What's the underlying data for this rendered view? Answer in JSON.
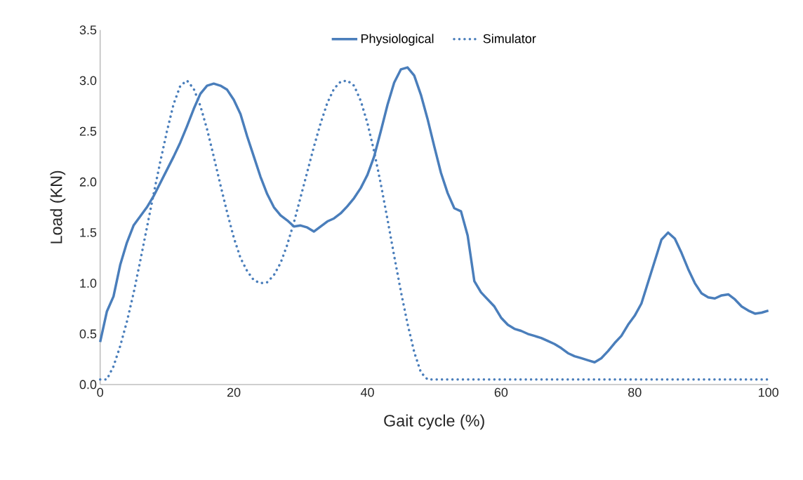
{
  "chart_data": {
    "type": "line",
    "xlabel": "Gait cycle (%)",
    "ylabel": "Load (KN)",
    "x": [
      0,
      1,
      2,
      3,
      4,
      5,
      6,
      7,
      8,
      9,
      10,
      11,
      12,
      13,
      14,
      15,
      16,
      17,
      18,
      19,
      20,
      21,
      22,
      23,
      24,
      25,
      26,
      27,
      28,
      29,
      30,
      31,
      32,
      33,
      34,
      35,
      36,
      37,
      38,
      39,
      40,
      41,
      42,
      43,
      44,
      45,
      46,
      47,
      48,
      49,
      50,
      51,
      52,
      53,
      54,
      55,
      56,
      57,
      58,
      59,
      60,
      61,
      62,
      63,
      64,
      65,
      66,
      67,
      68,
      69,
      70,
      71,
      72,
      73,
      74,
      75,
      76,
      77,
      78,
      79,
      80,
      81,
      82,
      83,
      84,
      85,
      86,
      87,
      88,
      89,
      90,
      91,
      92,
      93,
      94,
      95,
      96,
      97,
      98,
      99,
      100
    ],
    "series": [
      {
        "name": "Physiological",
        "color": "#4a7ebb",
        "line_style": "solid",
        "values": [
          0.42,
          0.72,
          0.87,
          1.18,
          1.4,
          1.57,
          1.66,
          1.75,
          1.86,
          1.99,
          2.12,
          2.25,
          2.39,
          2.55,
          2.72,
          2.87,
          2.95,
          2.97,
          2.95,
          2.91,
          2.81,
          2.67,
          2.45,
          2.25,
          2.05,
          1.88,
          1.75,
          1.67,
          1.62,
          1.56,
          1.57,
          1.55,
          1.51,
          1.56,
          1.61,
          1.64,
          1.69,
          1.76,
          1.84,
          1.94,
          2.07,
          2.25,
          2.5,
          2.76,
          2.98,
          3.11,
          3.13,
          3.05,
          2.86,
          2.62,
          2.35,
          2.09,
          1.89,
          1.74,
          1.71,
          1.47,
          1.02,
          0.91,
          0.84,
          0.77,
          0.66,
          0.59,
          0.55,
          0.53,
          0.5,
          0.48,
          0.46,
          0.43,
          0.4,
          0.36,
          0.31,
          0.28,
          0.26,
          0.24,
          0.22,
          0.26,
          0.33,
          0.41,
          0.48,
          0.59,
          0.68,
          0.8,
          1.01,
          1.22,
          1.43,
          1.5,
          1.44,
          1.3,
          1.14,
          1.0,
          0.9,
          0.86,
          0.85,
          0.88,
          0.89,
          0.84,
          0.77,
          0.73,
          0.7,
          0.71,
          0.73
        ]
      },
      {
        "name": "Simulator",
        "color": "#4a7ebb",
        "line_style": "dotted",
        "values": [
          0.05,
          0.05,
          0.18,
          0.38,
          0.62,
          0.9,
          1.22,
          1.55,
          1.88,
          2.2,
          2.5,
          2.77,
          2.95,
          3.0,
          2.92,
          2.75,
          2.52,
          2.25,
          1.97,
          1.7,
          1.45,
          1.25,
          1.12,
          1.03,
          1.0,
          1.01,
          1.08,
          1.2,
          1.38,
          1.6,
          1.85,
          2.1,
          2.35,
          2.58,
          2.78,
          2.92,
          2.99,
          3.0,
          2.95,
          2.8,
          2.58,
          2.3,
          1.98,
          1.63,
          1.27,
          0.92,
          0.6,
          0.32,
          0.12,
          0.05,
          0.05,
          0.05,
          0.05,
          0.05,
          0.05,
          0.05,
          0.05,
          0.05,
          0.05,
          0.05,
          0.05,
          0.05,
          0.05,
          0.05,
          0.05,
          0.05,
          0.05,
          0.05,
          0.05,
          0.05,
          0.05,
          0.05,
          0.05,
          0.05,
          0.05,
          0.05,
          0.05,
          0.05,
          0.05,
          0.05,
          0.05,
          0.05,
          0.05,
          0.05,
          0.05,
          0.05,
          0.05,
          0.05,
          0.05,
          0.05,
          0.05,
          0.05,
          0.05,
          0.05,
          0.05,
          0.05,
          0.05,
          0.05,
          0.05,
          0.05,
          0.05
        ]
      }
    ],
    "xlim": [
      0,
      100
    ],
    "ylim": [
      0,
      3.5
    ],
    "xticks": [
      0,
      20,
      40,
      60,
      80,
      100
    ],
    "yticks": [
      {
        "value": 0,
        "label": "0.0"
      },
      {
        "value": 0.5,
        "label": "0.5"
      },
      {
        "value": 1,
        "label": "1.0"
      },
      {
        "value": 1.5,
        "label": "1.5"
      },
      {
        "value": 2,
        "label": "2.0"
      },
      {
        "value": 2.5,
        "label": "2.5"
      },
      {
        "value": 3,
        "label": "3.0"
      },
      {
        "value": 3.5,
        "label": "3.5"
      }
    ],
    "grid": false,
    "legend": "top",
    "marker": "none"
  }
}
